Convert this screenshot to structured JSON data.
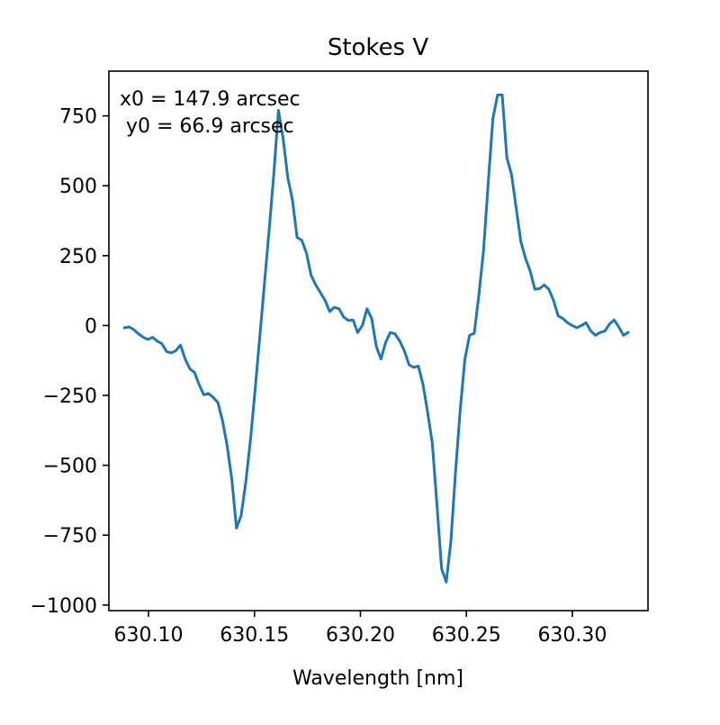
{
  "chart_data": {
    "type": "line",
    "title": "Stokes V",
    "xlabel": "Wavelength [nm]",
    "ylabel": "",
    "xlim": [
      630.0813,
      630.3357
    ],
    "ylim": [
      -1020,
      910
    ],
    "xticks": [
      630.1,
      630.15,
      630.2,
      630.25,
      630.3
    ],
    "xtick_labels": [
      "630.10",
      "630.15",
      "630.20",
      "630.25",
      "630.30"
    ],
    "yticks": [
      750,
      500,
      250,
      0,
      -250,
      -500,
      -750,
      -1000
    ],
    "ytick_labels": [
      "750",
      "500",
      "250",
      "0",
      "−250",
      "−500",
      "−750",
      "−1000"
    ],
    "grid": false,
    "annotations": [
      "x0 = 147.9 arcsec",
      "y0 = 66.9 arcsec"
    ],
    "series": [
      {
        "color": "#1f77b4",
        "x": [
          630.0887,
          630.0909,
          630.0931,
          630.0953,
          630.0975,
          630.0997,
          630.1019,
          630.1041,
          630.1063,
          630.1085,
          630.1107,
          630.1129,
          630.1151,
          630.1173,
          630.1195,
          630.1217,
          630.1239,
          630.1261,
          630.1283,
          630.1305,
          630.1327,
          630.1349,
          630.1371,
          630.1393,
          630.1415,
          630.1437,
          630.1459,
          630.1481,
          630.1503,
          630.1525,
          630.1547,
          630.1569,
          630.1591,
          630.1613,
          630.1635,
          630.1657,
          630.1679,
          630.1701,
          630.1723,
          630.1745,
          630.1767,
          630.1789,
          630.1811,
          630.1833,
          630.1855,
          630.1877,
          630.1899,
          630.1921,
          630.1943,
          630.1965,
          630.1987,
          630.2009,
          630.2031,
          630.2053,
          630.2075,
          630.2097,
          630.2119,
          630.2141,
          630.2163,
          630.2185,
          630.2207,
          630.2229,
          630.2251,
          630.2273,
          630.2295,
          630.2317,
          630.2339,
          630.2361,
          630.2383,
          630.2405,
          630.2427,
          630.2449,
          630.2471,
          630.2493,
          630.2515,
          630.2537,
          630.2559,
          630.2581,
          630.2603,
          630.2625,
          630.2647,
          630.2669,
          630.2691,
          630.2713,
          630.2735,
          630.2757,
          630.2779,
          630.2801,
          630.2823,
          630.2845,
          630.2867,
          630.2889,
          630.2911,
          630.2933,
          630.2955,
          630.2977,
          630.2999,
          630.3021,
          630.3043,
          630.3065,
          630.3087,
          630.3109,
          630.3131,
          630.3153,
          630.3175,
          630.3197,
          630.3219,
          630.3241,
          630.3263
        ],
        "y": [
          -8,
          -5,
          -15,
          -30,
          -42,
          -50,
          -42,
          -56,
          -65,
          -93,
          -98,
          -90,
          -70,
          -120,
          -155,
          -168,
          -212,
          -248,
          -243,
          -257,
          -275,
          -340,
          -430,
          -550,
          -725,
          -680,
          -560,
          -410,
          -230,
          -40,
          150,
          340,
          540,
          770,
          670,
          530,
          450,
          315,
          305,
          260,
          180,
          145,
          118,
          90,
          50,
          65,
          60,
          30,
          18,
          20,
          -25,
          0,
          60,
          25,
          -75,
          -120,
          -60,
          -25,
          -30,
          -55,
          -90,
          -140,
          -150,
          -145,
          -210,
          -310,
          -420,
          -640,
          -870,
          -918,
          -770,
          -520,
          -300,
          -120,
          -35,
          -28,
          110,
          270,
          510,
          740,
          825,
          825,
          600,
          540,
          420,
          300,
          240,
          195,
          130,
          132,
          145,
          130,
          90,
          35,
          25,
          10,
          0,
          -8,
          0,
          10,
          -20,
          -35,
          -25,
          -20,
          5,
          20,
          -5,
          -35,
          -25
        ]
      }
    ]
  }
}
